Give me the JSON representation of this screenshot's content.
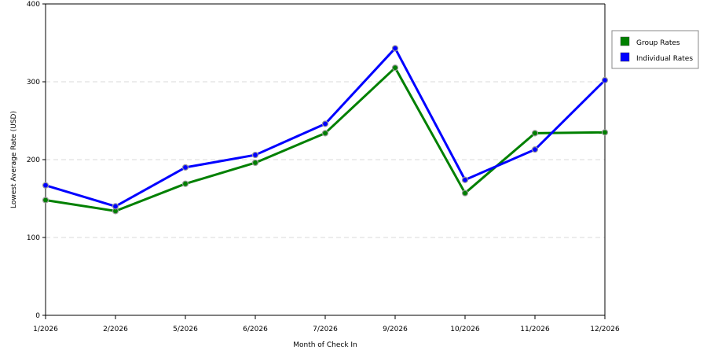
{
  "chart_data": {
    "type": "line",
    "categories": [
      "1/2026",
      "2/2026",
      "5/2026",
      "6/2026",
      "7/2026",
      "9/2026",
      "10/2026",
      "11/2026",
      "12/2026"
    ],
    "series": [
      {
        "name": "Group Rates",
        "color": "#008000",
        "values": [
          148,
          134,
          169,
          196,
          234,
          318,
          157,
          234,
          235
        ]
      },
      {
        "name": "Individual Rates",
        "color": "#0000ff",
        "values": [
          167,
          140,
          190,
          206,
          246,
          343,
          174,
          213,
          302
        ]
      }
    ],
    "xlabel": "Month of Check In",
    "ylabel": "Lowest Average Rate (USD)",
    "ylim": [
      0,
      400
    ],
    "yticks": [
      0,
      100,
      200,
      300,
      400
    ],
    "grid": "horizontal-dashed",
    "legend_position": "right"
  }
}
